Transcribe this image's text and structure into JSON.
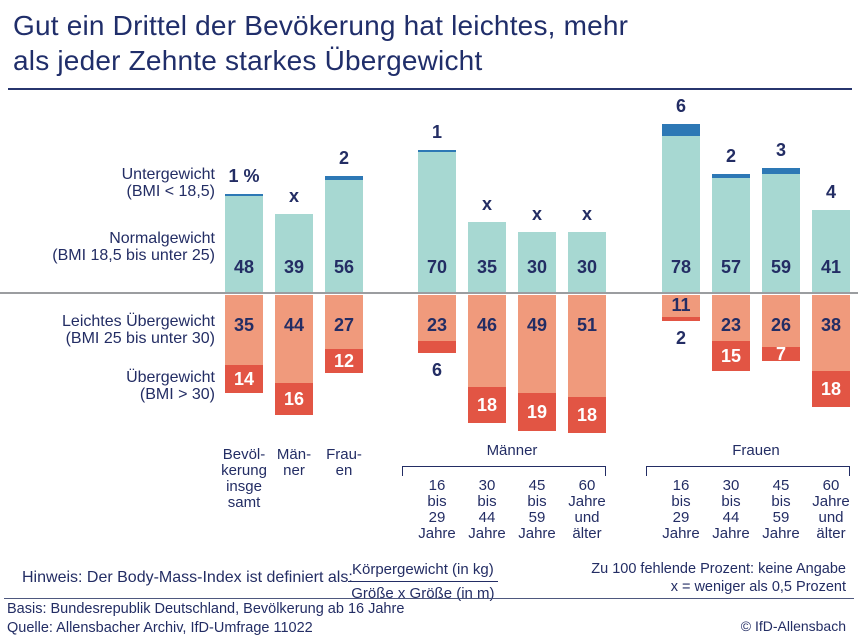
{
  "title": {
    "line1": "Gut ein Drittel der Bevökerung hat leichtes, mehr",
    "line2": "als jeder Zehnte starkes Übergewicht"
  },
  "colors": {
    "navy": "#232d64",
    "untergewicht_blue": "#2d78b5",
    "normalgewicht_teal": "#a7d8d2",
    "leichtes_salmon": "#f09a7c",
    "starkes_red": "#e25544",
    "baseline_gray": "#9b9da0",
    "white": "#ffffff"
  },
  "chart_data": {
    "type": "bar",
    "subtype": "diverging-stacked",
    "unit": "Prozent",
    "note": "Werte in Prozent; x = weniger als 0,5 Prozent; Zu 100 fehlende Prozent: keine Angabe",
    "segments": [
      {
        "name": "Untergewicht",
        "bmi": "(BMI < 18,5)"
      },
      {
        "name": "Normalgewicht",
        "bmi": "(BMI 18,5 bis unter 25)"
      },
      {
        "name": "Leichtes Übergewicht",
        "bmi": "(BMI 25 bis unter 30)"
      },
      {
        "name": "Übergewicht",
        "bmi": "(BMI > 30)"
      }
    ],
    "groups": [
      {
        "name": null,
        "bars": [
          {
            "axis_label_lines": [
              "Bevöl-",
              "kerung",
              "insge",
              "samt"
            ],
            "untergewicht": {
              "label": "1 %",
              "value": 1,
              "cap_drawn": true
            },
            "normalgewicht": 48,
            "leichtes_uebergewicht": 35,
            "starkes_uebergewicht": {
              "value": 14,
              "label_position": "inside"
            }
          },
          {
            "axis_label_lines": [
              "Män-",
              "ner"
            ],
            "untergewicht": {
              "label": "x",
              "value": null,
              "cap_drawn": false
            },
            "normalgewicht": 39,
            "leichtes_uebergewicht": 44,
            "starkes_uebergewicht": {
              "value": 16,
              "label_position": "inside"
            }
          },
          {
            "axis_label_lines": [
              "Frau-",
              "en"
            ],
            "untergewicht": {
              "label": "2",
              "value": 2,
              "cap_drawn": true
            },
            "normalgewicht": 56,
            "leichtes_uebergewicht": 27,
            "starkes_uebergewicht": {
              "value": 12,
              "label_position": "inside"
            }
          }
        ]
      },
      {
        "name": "Männer",
        "bars": [
          {
            "axis_label_lines": [
              "16",
              "bis",
              "29",
              "Jahre"
            ],
            "untergewicht": {
              "label": "1",
              "value": 1,
              "cap_drawn": true
            },
            "normalgewicht": 70,
            "leichtes_uebergewicht": 23,
            "starkes_uebergewicht": {
              "value": 6,
              "label_position": "below"
            }
          },
          {
            "axis_label_lines": [
              "30",
              "bis",
              "44",
              "Jahre"
            ],
            "untergewicht": {
              "label": "x",
              "value": null,
              "cap_drawn": false
            },
            "normalgewicht": 35,
            "leichtes_uebergewicht": 46,
            "starkes_uebergewicht": {
              "value": 18,
              "label_position": "inside"
            }
          },
          {
            "axis_label_lines": [
              "45",
              "bis",
              "59",
              "Jahre"
            ],
            "untergewicht": {
              "label": "x",
              "value": null,
              "cap_drawn": false
            },
            "normalgewicht": 30,
            "leichtes_uebergewicht": 49,
            "starkes_uebergewicht": {
              "value": 19,
              "label_position": "inside"
            }
          },
          {
            "axis_label_lines": [
              "60",
              "Jahre",
              "und",
              "älter"
            ],
            "untergewicht": {
              "label": "x",
              "value": null,
              "cap_drawn": false
            },
            "normalgewicht": 30,
            "leichtes_uebergewicht": 51,
            "starkes_uebergewicht": {
              "value": 18,
              "label_position": "inside"
            }
          }
        ]
      },
      {
        "name": "Frauen",
        "bars": [
          {
            "axis_label_lines": [
              "16",
              "bis",
              "29",
              "Jahre"
            ],
            "untergewicht": {
              "label": "6",
              "value": 6,
              "cap_drawn": true
            },
            "normalgewicht": 78,
            "leichtes_uebergewicht": 11,
            "starkes_uebergewicht": {
              "value": 2,
              "label_position": "below"
            }
          },
          {
            "axis_label_lines": [
              "30",
              "bis",
              "44",
              "Jahre"
            ],
            "untergewicht": {
              "label": "2",
              "value": 2,
              "cap_drawn": true
            },
            "normalgewicht": 57,
            "leichtes_uebergewicht": 23,
            "starkes_uebergewicht": {
              "value": 15,
              "label_position": "inside"
            }
          },
          {
            "axis_label_lines": [
              "45",
              "bis",
              "59",
              "Jahre"
            ],
            "untergewicht": {
              "label": "3",
              "value": 3,
              "cap_drawn": true
            },
            "normalgewicht": 59,
            "leichtes_uebergewicht": 26,
            "starkes_uebergewicht": {
              "value": 7,
              "label_position": "inside"
            }
          },
          {
            "axis_label_lines": [
              "60",
              "Jahre",
              "und",
              "älter"
            ],
            "untergewicht": {
              "label": "4",
              "value": 4,
              "cap_drawn": false
            },
            "normalgewicht": 41,
            "leichtes_uebergewicht": 38,
            "starkes_uebergewicht": {
              "value": 18,
              "label_position": "inside"
            }
          }
        ]
      }
    ]
  },
  "footnotes": {
    "hinweis": "Hinweis: Der Body-Mass-Index ist definiert als:",
    "formula_numerator": "Körpergewicht (in kg)",
    "formula_denominator": "Größe x Größe (in m)",
    "note_line1": "Zu 100 fehlende Prozent: keine Angabe",
    "note_line2": "x = weniger als 0,5 Prozent",
    "basis": "Basis: Bundesrepublik Deutschland, Bevölkerung ab 16 Jahre",
    "quelle": "Quelle: Allensbacher Archiv, IfD-Umfrage 11022",
    "copyright": "© IfD-Allensbach"
  }
}
